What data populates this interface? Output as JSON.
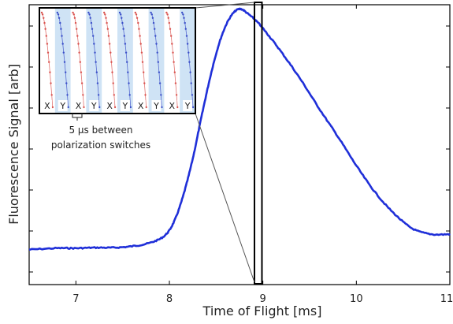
{
  "chart_data": {
    "type": "line",
    "xlabel": "Time of Flight [ms]",
    "ylabel": "Fluorescence Signal [arb]",
    "xlim": [
      6.5,
      11
    ],
    "ylim": [
      0,
      1
    ],
    "x_ticks": [
      "7",
      "8",
      "9",
      "10",
      "11"
    ],
    "series": [
      {
        "color": "#1f2fd8",
        "points": [
          [
            6.5,
            0.125
          ],
          [
            6.8,
            0.13
          ],
          [
            7.0,
            0.13
          ],
          [
            7.2,
            0.132
          ],
          [
            7.4,
            0.132
          ],
          [
            7.6,
            0.137
          ],
          [
            7.8,
            0.15
          ],
          [
            7.95,
            0.175
          ],
          [
            8.05,
            0.225
          ],
          [
            8.15,
            0.32
          ],
          [
            8.25,
            0.45
          ],
          [
            8.35,
            0.61
          ],
          [
            8.45,
            0.76
          ],
          [
            8.55,
            0.88
          ],
          [
            8.65,
            0.955
          ],
          [
            8.75,
            0.985
          ],
          [
            8.85,
            0.965
          ],
          [
            8.95,
            0.935
          ],
          [
            9.05,
            0.895
          ],
          [
            9.2,
            0.83
          ],
          [
            9.4,
            0.735
          ],
          [
            9.6,
            0.63
          ],
          [
            9.8,
            0.53
          ],
          [
            10.0,
            0.425
          ],
          [
            10.2,
            0.33
          ],
          [
            10.4,
            0.255
          ],
          [
            10.6,
            0.2
          ],
          [
            10.8,
            0.18
          ],
          [
            11.0,
            0.18
          ]
        ]
      }
    ],
    "highlight_window": {
      "x_start": 8.91,
      "x_end": 8.99
    },
    "inset": {
      "polarization_labels": [
        "X",
        "Y",
        "X",
        "Y",
        "X",
        "Y",
        "X",
        "Y",
        "X",
        "Y"
      ],
      "annotation_line1": "5 μs between",
      "annotation_line2": "polarization switches",
      "cycle_colors": [
        "#d9534f",
        "#3a4ec8"
      ],
      "band_color": "#cfe3f5"
    }
  }
}
